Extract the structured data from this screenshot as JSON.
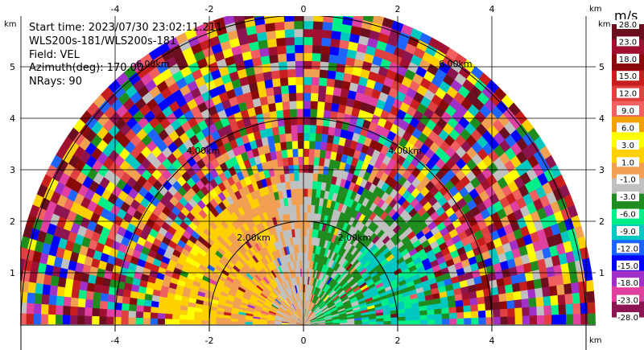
{
  "info": {
    "start_time": "Start time: 2023/07/30 23:02:11.211",
    "site": "WLS200s-181/WLS200s-181",
    "field": "Field: VEL",
    "azimuth": "Azimuth(deg): 170.00",
    "nrays": "NRays: 90"
  },
  "colorbar": {
    "title": "m/s",
    "levels": [
      "28.0",
      "23.0",
      "18.0",
      "15.0",
      "12.0",
      "9.0",
      "6.0",
      "3.0",
      "1.0",
      "-1.0",
      "-3.0",
      "-6.0",
      "-9.0",
      "-12.0",
      "-15.0",
      "-18.0",
      "-23.0",
      "-28.0"
    ],
    "colors": [
      "#6b0f1f",
      "#a01030",
      "#8a0a0a",
      "#c81e1e",
      "#e04040",
      "#f06060",
      "#f0a000",
      "#ffff00",
      "#ffd000",
      "#f0a050",
      "#c0c0c0",
      "#1e8c1e",
      "#00ee88",
      "#00c8c0",
      "#1e64ff",
      "#0000ff",
      "#a030c8",
      "#e040a0",
      "#8c1450"
    ]
  },
  "chart_data": {
    "type": "heatmap",
    "description_field": "VEL",
    "x_axis": {
      "unit": "km",
      "ticks": [
        -4,
        -2,
        0,
        2,
        4
      ],
      "range": [
        -6.2,
        6.2
      ]
    },
    "y_axis": {
      "unit": "km",
      "ticks": [
        1,
        2,
        3,
        4,
        5
      ],
      "range": [
        0,
        5.8
      ]
    },
    "range_rings_km": [
      2,
      4,
      6
    ],
    "range_ring_labels": [
      "2.00km",
      "4.00km",
      "6.00km"
    ],
    "max_range_km": 6.2
  },
  "axes": {
    "x_unit_top": "km",
    "x_unit_bottom": "km",
    "y_unit_left": "km",
    "y_unit_right": "km"
  }
}
